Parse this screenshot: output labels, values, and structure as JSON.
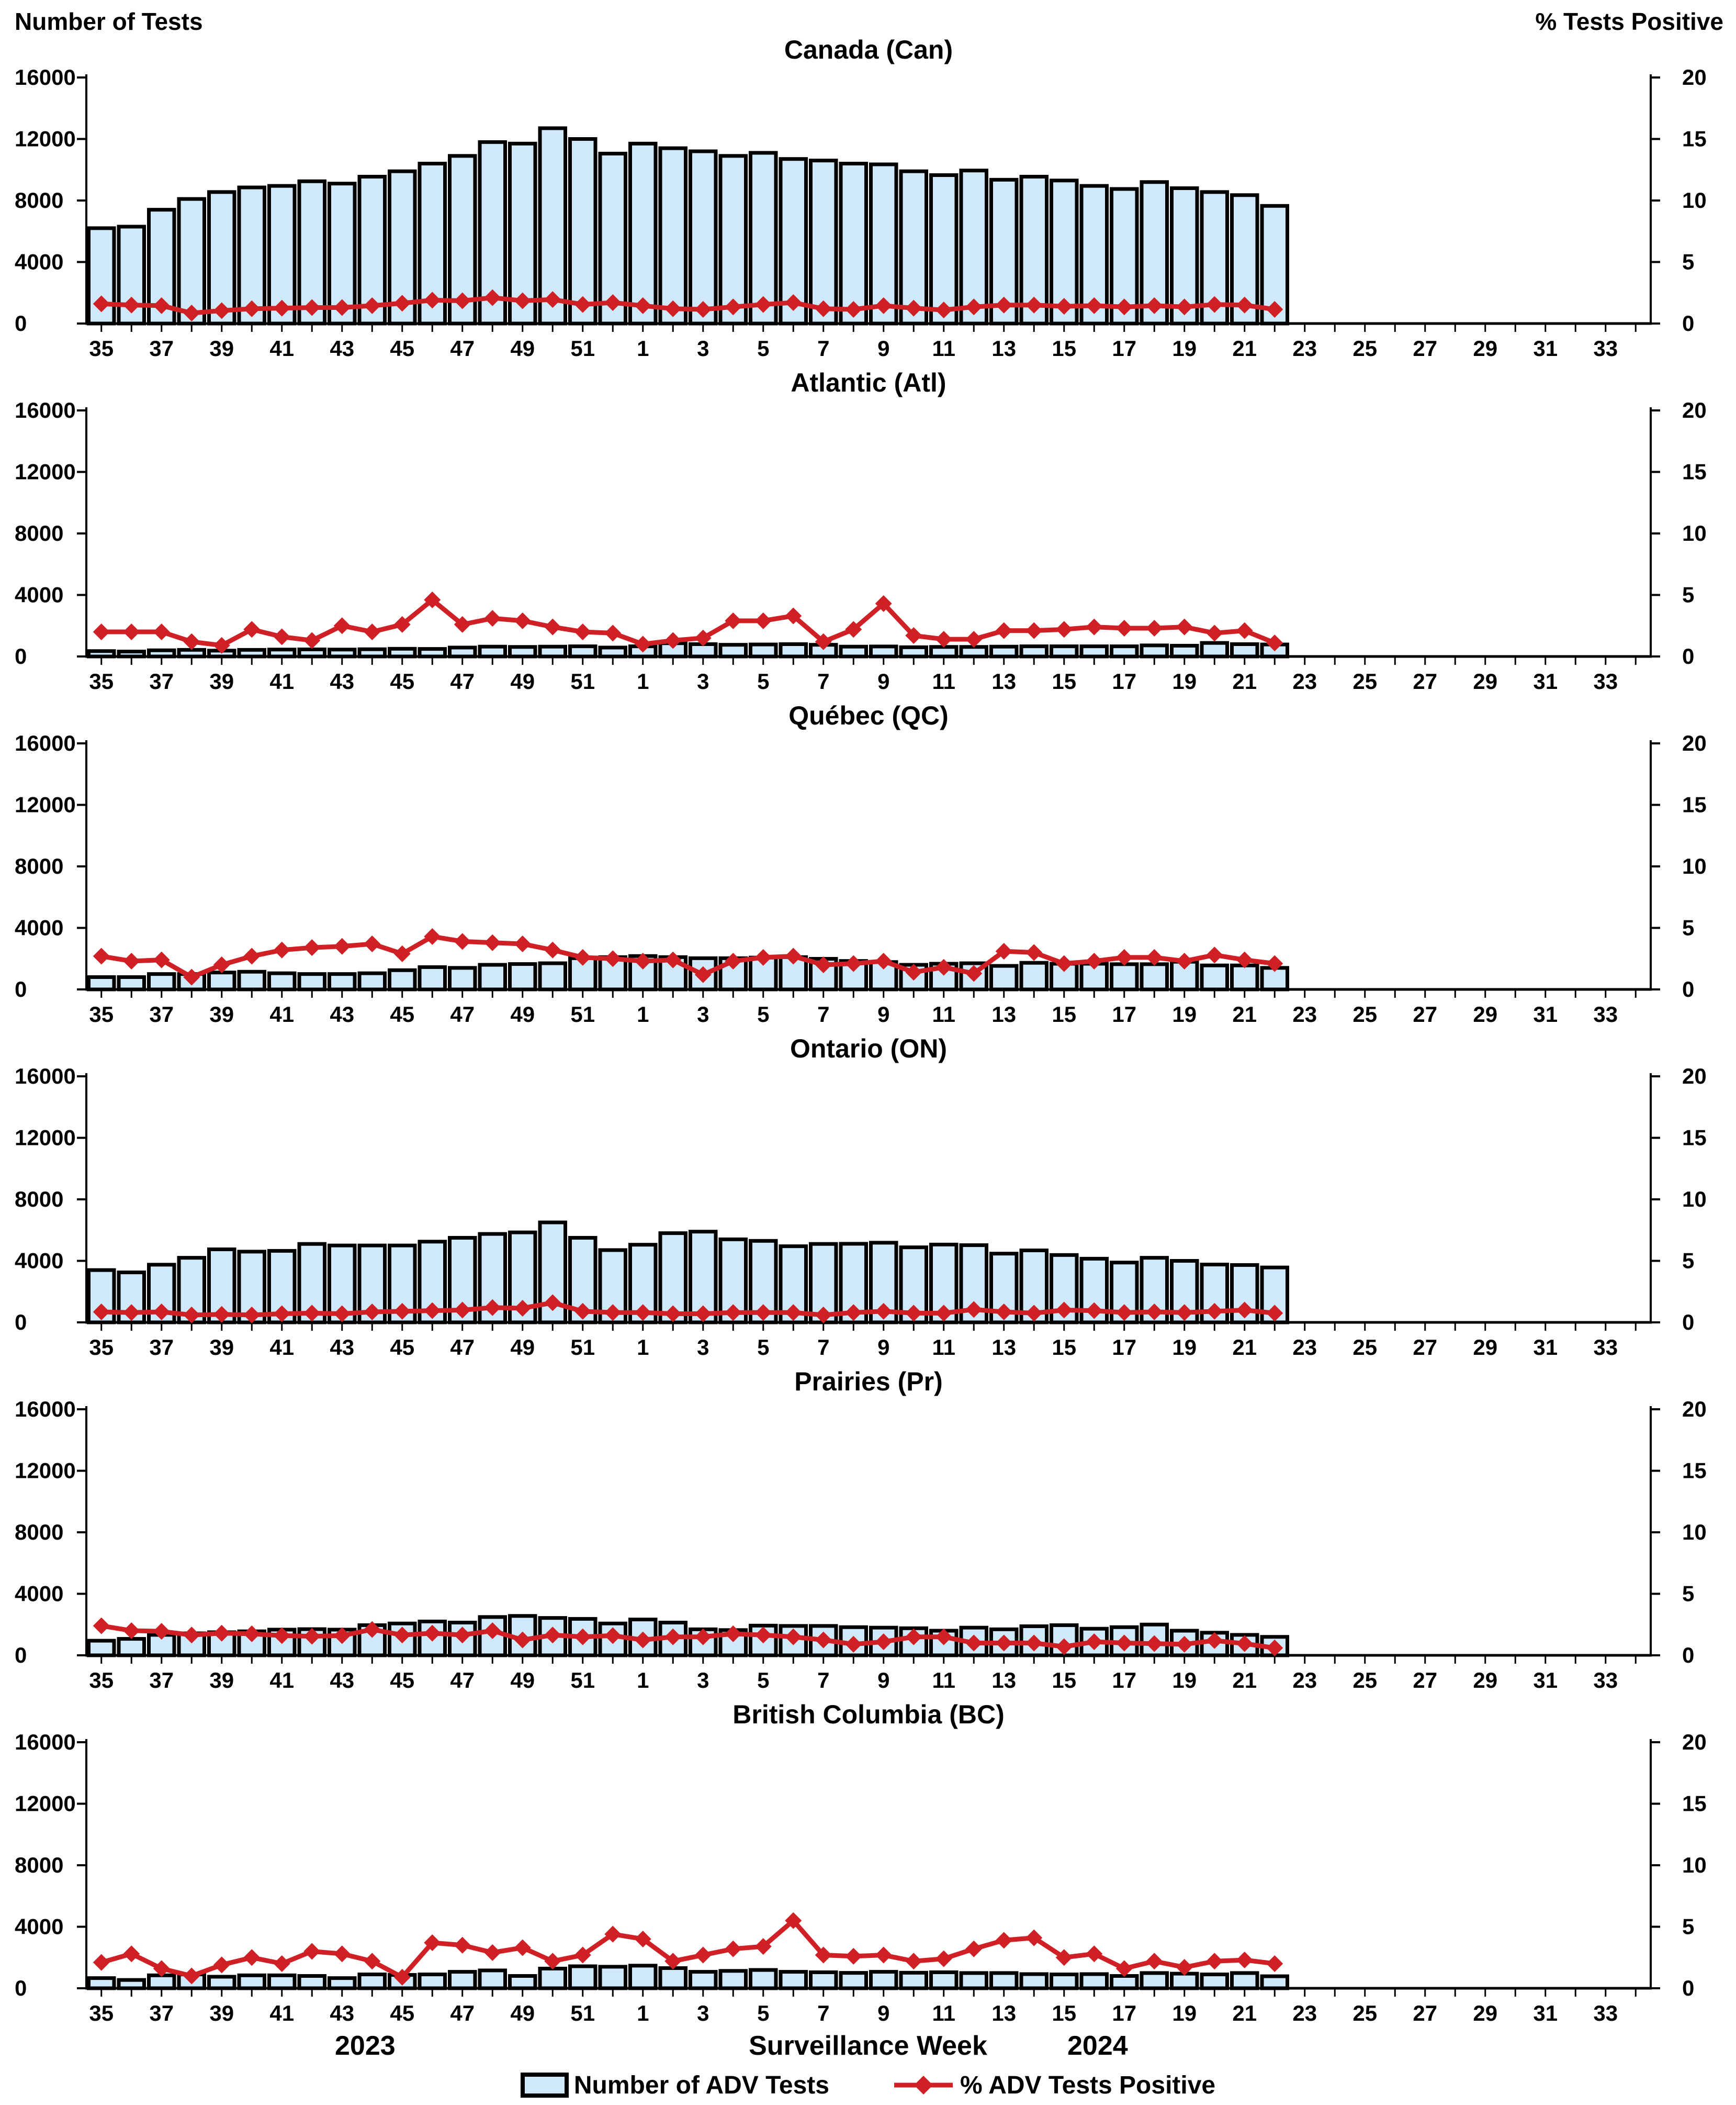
{
  "header": {
    "left_axis_title": "Number of Tests",
    "right_axis_title": "% Tests Positive"
  },
  "footer": {
    "year_left": "2023",
    "x_axis_title": "Surveillance Week",
    "year_right": "2024"
  },
  "legend": {
    "position": "bottom",
    "bars_label": "Number of ADV Tests",
    "line_label": "% ADV Tests Positive"
  },
  "colors": {
    "bar_fill": "#cfe9fa",
    "bar_stroke": "#000000",
    "line_color": "#cf2026",
    "axis_color": "#000000",
    "background": "#ffffff"
  },
  "axes": {
    "left_ticks": [
      16000,
      12000,
      8000,
      4000,
      0
    ],
    "right_ticks": [
      20,
      15,
      10,
      5,
      0
    ],
    "left_max": 16000,
    "right_max": 20,
    "grid": false,
    "x_weeks": [
      35,
      36,
      37,
      38,
      39,
      40,
      41,
      42,
      43,
      44,
      45,
      46,
      47,
      48,
      49,
      50,
      51,
      52,
      1,
      2,
      3,
      4,
      5,
      6,
      7,
      8,
      9,
      10,
      11,
      12,
      13,
      14,
      15,
      16,
      17,
      18,
      19,
      20,
      21,
      22,
      23,
      24,
      25,
      26,
      27,
      28,
      29,
      30,
      31,
      32,
      33,
      34
    ],
    "x_labeled_weeks": [
      35,
      37,
      39,
      41,
      43,
      45,
      47,
      49,
      51,
      1,
      3,
      5,
      7,
      9,
      11,
      13,
      15,
      17,
      19,
      21,
      23,
      25,
      27,
      29,
      31,
      33
    ]
  },
  "chart_data": [
    {
      "type": "bar",
      "title": "Canada (Can)",
      "xlabel": "Surveillance Week",
      "ylabel_left": "Number of Tests",
      "ylabel_right": "% Tests Positive",
      "ylim_left": [
        0,
        16000
      ],
      "ylim_right": [
        0,
        20
      ],
      "categories": [
        35,
        36,
        37,
        38,
        39,
        40,
        41,
        42,
        43,
        44,
        45,
        46,
        47,
        48,
        49,
        50,
        51,
        52,
        1,
        2,
        3,
        4,
        5,
        6,
        7,
        8,
        9,
        10,
        11,
        12,
        13,
        14,
        15,
        16,
        17,
        18,
        19,
        20,
        21,
        22
      ],
      "series": [
        {
          "name": "Number of ADV Tests",
          "type": "bar",
          "values": [
            6200,
            6300,
            7400,
            8100,
            8550,
            8850,
            8950,
            9250,
            9100,
            9550,
            9900,
            10400,
            10900,
            11800,
            11700,
            12700,
            12000,
            11050,
            11700,
            11400,
            11200,
            10900,
            11100,
            10700,
            10600,
            10400,
            10350,
            9900,
            9650,
            9950,
            9350,
            9550,
            9300,
            8950,
            8750,
            9200,
            8800,
            8550,
            8350,
            7650
          ]
        },
        {
          "name": "% ADV Tests Positive",
          "type": "line",
          "values": [
            1.6,
            1.5,
            1.45,
            0.85,
            1.05,
            1.2,
            1.25,
            1.3,
            1.3,
            1.45,
            1.65,
            1.9,
            1.85,
            2.1,
            1.85,
            1.95,
            1.55,
            1.7,
            1.45,
            1.2,
            1.15,
            1.35,
            1.55,
            1.7,
            1.2,
            1.15,
            1.45,
            1.25,
            1.1,
            1.35,
            1.5,
            1.5,
            1.4,
            1.45,
            1.35,
            1.45,
            1.35,
            1.55,
            1.5,
            1.15
          ]
        }
      ]
    },
    {
      "type": "bar",
      "title": "Atlantic (Atl)",
      "ylim_left": [
        0,
        16000
      ],
      "ylim_right": [
        0,
        20
      ],
      "categories": [
        35,
        36,
        37,
        38,
        39,
        40,
        41,
        42,
        43,
        44,
        45,
        46,
        47,
        48,
        49,
        50,
        51,
        52,
        1,
        2,
        3,
        4,
        5,
        6,
        7,
        8,
        9,
        10,
        11,
        12,
        13,
        14,
        15,
        16,
        17,
        18,
        19,
        20,
        21,
        22
      ],
      "series": [
        {
          "name": "Number of ADV Tests",
          "type": "bar",
          "values": [
            350,
            320,
            400,
            430,
            380,
            430,
            450,
            460,
            450,
            470,
            500,
            490,
            580,
            640,
            620,
            640,
            660,
            580,
            660,
            860,
            800,
            760,
            780,
            800,
            760,
            640,
            650,
            600,
            620,
            620,
            640,
            660,
            660,
            660,
            660,
            720,
            700,
            880,
            800,
            780
          ]
        },
        {
          "name": "% ADV Tests Positive",
          "type": "line",
          "values": [
            2.0,
            2.0,
            2.0,
            1.2,
            0.9,
            2.2,
            1.6,
            1.3,
            2.5,
            2.0,
            2.6,
            4.6,
            2.6,
            3.1,
            2.9,
            2.4,
            2.0,
            1.9,
            1.0,
            1.3,
            1.5,
            2.9,
            2.9,
            3.3,
            1.2,
            2.2,
            4.3,
            1.7,
            1.4,
            1.4,
            2.1,
            2.1,
            2.2,
            2.4,
            2.3,
            2.3,
            2.4,
            1.9,
            2.1,
            1.1
          ]
        }
      ]
    },
    {
      "type": "bar",
      "title": "Québec (QC)",
      "ylim_left": [
        0,
        16000
      ],
      "ylim_right": [
        0,
        20
      ],
      "categories": [
        35,
        36,
        37,
        38,
        39,
        40,
        41,
        42,
        43,
        44,
        45,
        46,
        47,
        48,
        49,
        50,
        51,
        52,
        1,
        2,
        3,
        4,
        5,
        6,
        7,
        8,
        9,
        10,
        11,
        12,
        13,
        14,
        15,
        16,
        17,
        18,
        19,
        20,
        21,
        22
      ],
      "series": [
        {
          "name": "Number of ADV Tests",
          "type": "bar",
          "values": [
            800,
            800,
            1000,
            1000,
            1100,
            1150,
            1050,
            1000,
            1000,
            1050,
            1250,
            1450,
            1400,
            1600,
            1650,
            1700,
            2030,
            2100,
            2170,
            2100,
            2030,
            2030,
            2070,
            2100,
            1990,
            1850,
            1780,
            1600,
            1670,
            1700,
            1530,
            1730,
            1670,
            1670,
            1640,
            1640,
            1800,
            1560,
            1560,
            1400
          ]
        },
        {
          "name": "% ADV Tests Positive",
          "type": "line",
          "values": [
            2.7,
            2.3,
            2.4,
            1.0,
            2.0,
            2.7,
            3.2,
            3.4,
            3.5,
            3.7,
            2.9,
            4.3,
            3.9,
            3.8,
            3.7,
            3.2,
            2.6,
            2.5,
            2.3,
            2.4,
            1.2,
            2.3,
            2.6,
            2.7,
            2.0,
            2.1,
            2.3,
            1.4,
            1.8,
            1.3,
            3.1,
            3.0,
            2.1,
            2.3,
            2.6,
            2.6,
            2.3,
            2.8,
            2.4,
            2.1
          ]
        }
      ]
    },
    {
      "type": "bar",
      "title": "Ontario (ON)",
      "ylim_left": [
        0,
        16000
      ],
      "ylim_right": [
        0,
        20
      ],
      "categories": [
        35,
        36,
        37,
        38,
        39,
        40,
        41,
        42,
        43,
        44,
        45,
        46,
        47,
        48,
        49,
        50,
        51,
        52,
        1,
        2,
        3,
        4,
        5,
        6,
        7,
        8,
        9,
        10,
        11,
        12,
        13,
        14,
        15,
        16,
        17,
        18,
        19,
        20,
        21,
        22
      ],
      "series": [
        {
          "name": "Number of ADV Tests",
          "type": "bar",
          "values": [
            3400,
            3250,
            3750,
            4200,
            4750,
            4600,
            4650,
            5100,
            5000,
            5000,
            5000,
            5250,
            5500,
            5750,
            5850,
            6500,
            5500,
            4700,
            5050,
            5800,
            5900,
            5400,
            5300,
            4950,
            5100,
            5110,
            5180,
            4880,
            5060,
            5020,
            4470,
            4680,
            4380,
            4140,
            3890,
            4200,
            4000,
            3760,
            3730,
            3570
          ]
        },
        {
          "name": "% ADV Tests Positive",
          "type": "line",
          "values": [
            0.85,
            0.8,
            0.85,
            0.6,
            0.65,
            0.6,
            0.7,
            0.75,
            0.7,
            0.85,
            0.9,
            0.95,
            1.0,
            1.2,
            1.15,
            1.6,
            0.9,
            0.8,
            0.8,
            0.7,
            0.7,
            0.8,
            0.8,
            0.8,
            0.6,
            0.8,
            0.9,
            0.75,
            0.75,
            1.05,
            0.85,
            0.75,
            1.0,
            0.95,
            0.8,
            0.85,
            0.8,
            0.9,
            1.0,
            0.75
          ]
        }
      ]
    },
    {
      "type": "bar",
      "title": "Prairies (Pr)",
      "ylim_left": [
        0,
        16000
      ],
      "ylim_right": [
        0,
        20
      ],
      "categories": [
        35,
        36,
        37,
        38,
        39,
        40,
        41,
        42,
        43,
        44,
        45,
        46,
        47,
        48,
        49,
        50,
        51,
        52,
        1,
        2,
        3,
        4,
        5,
        6,
        7,
        8,
        9,
        10,
        11,
        12,
        13,
        14,
        15,
        16,
        17,
        18,
        19,
        20,
        21,
        22
      ],
      "series": [
        {
          "name": "Number of ADV Tests",
          "type": "bar",
          "values": [
            950,
            1070,
            1330,
            1430,
            1500,
            1560,
            1670,
            1700,
            1670,
            1960,
            2070,
            2200,
            2130,
            2490,
            2560,
            2430,
            2370,
            2070,
            2330,
            2130,
            1690,
            1640,
            1930,
            1910,
            1910,
            1830,
            1800,
            1760,
            1600,
            1800,
            1690,
            1890,
            1960,
            1730,
            1830,
            2000,
            1600,
            1470,
            1330,
            1200
          ]
        },
        {
          "name": "% ADV Tests Positive",
          "type": "line",
          "values": [
            2.4,
            2.0,
            1.95,
            1.65,
            1.8,
            1.75,
            1.6,
            1.55,
            1.6,
            2.1,
            1.65,
            1.8,
            1.65,
            2.0,
            1.25,
            1.65,
            1.5,
            1.6,
            1.25,
            1.5,
            1.5,
            1.75,
            1.65,
            1.5,
            1.25,
            0.9,
            1.1,
            1.5,
            1.5,
            1.0,
            1.0,
            1.0,
            0.7,
            1.1,
            1.0,
            0.95,
            0.9,
            1.2,
            0.95,
            0.6
          ]
        }
      ]
    },
    {
      "type": "bar",
      "title": "British Columbia (BC)",
      "ylim_left": [
        0,
        16000
      ],
      "ylim_right": [
        0,
        20
      ],
      "categories": [
        35,
        36,
        37,
        38,
        39,
        40,
        41,
        42,
        43,
        44,
        45,
        46,
        47,
        48,
        49,
        50,
        51,
        52,
        1,
        2,
        3,
        4,
        5,
        6,
        7,
        8,
        9,
        10,
        11,
        12,
        13,
        14,
        15,
        16,
        17,
        18,
        19,
        20,
        21,
        22
      ],
      "series": [
        {
          "name": "Number of ADV Tests",
          "type": "bar",
          "values": [
            660,
            540,
            840,
            900,
            750,
            840,
            840,
            800,
            660,
            900,
            870,
            900,
            1070,
            1160,
            800,
            1280,
            1430,
            1400,
            1470,
            1310,
            1070,
            1130,
            1190,
            1070,
            1040,
            1000,
            1070,
            1010,
            1040,
            990,
            990,
            920,
            900,
            920,
            800,
            990,
            950,
            900,
            990,
            780
          ]
        },
        {
          "name": "% ADV Tests Positive",
          "type": "line",
          "values": [
            2.1,
            2.8,
            1.6,
            1.0,
            1.9,
            2.5,
            2.0,
            3.0,
            2.8,
            2.2,
            0.9,
            3.7,
            3.5,
            2.9,
            3.3,
            2.2,
            2.7,
            4.4,
            4.0,
            2.2,
            2.7,
            3.2,
            3.4,
            5.5,
            2.7,
            2.6,
            2.7,
            2.2,
            2.4,
            3.2,
            3.9,
            4.1,
            2.5,
            2.8,
            1.6,
            2.2,
            1.7,
            2.2,
            2.3,
            2.0
          ]
        }
      ]
    }
  ]
}
